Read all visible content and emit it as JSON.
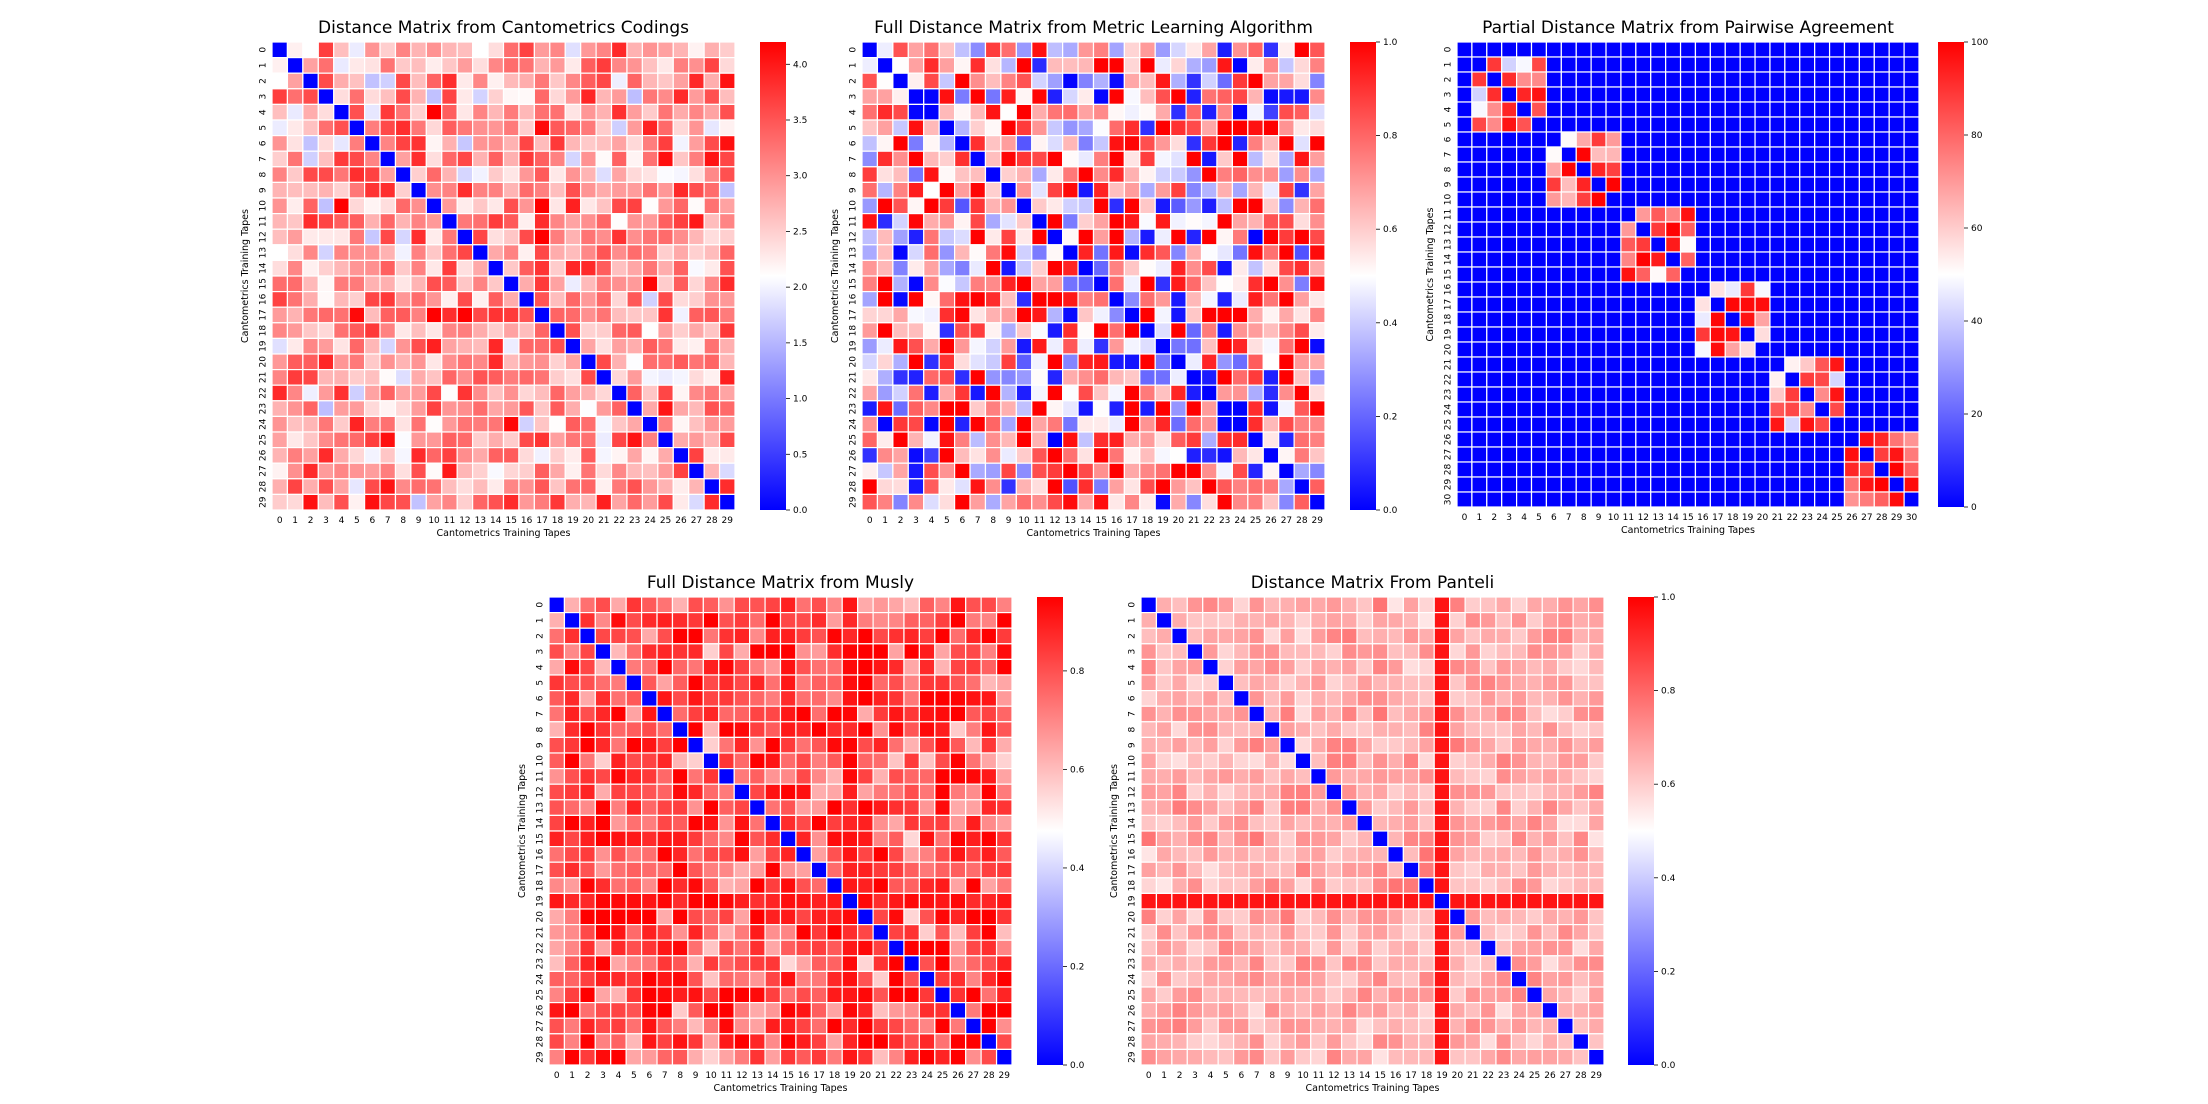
{
  "chart_data": [
    {
      "type": "heatmap",
      "title": "Distance Matrix from Cantometrics Codings",
      "xlabel": "Cantometrics Training Tapes",
      "ylabel": "Cantometrics Training Tapes",
      "size": 30,
      "x_ticks": [
        "0",
        "1",
        "2",
        "3",
        "4",
        "5",
        "6",
        "7",
        "8",
        "9",
        "10",
        "11",
        "12",
        "13",
        "14",
        "15",
        "16",
        "17",
        "18",
        "19",
        "20",
        "21",
        "22",
        "23",
        "24",
        "25",
        "26",
        "27",
        "28",
        "29"
      ],
      "y_ticks": [
        "0",
        "1",
        "2",
        "3",
        "4",
        "5",
        "6",
        "7",
        "8",
        "9",
        "10",
        "11",
        "12",
        "13",
        "14",
        "15",
        "16",
        "17",
        "18",
        "19",
        "20",
        "21",
        "22",
        "23",
        "24",
        "25",
        "26",
        "27",
        "28",
        "29"
      ],
      "colorbar": {
        "min": 0.0,
        "max": 4.2,
        "ticks": [
          "0.0",
          "0.5",
          "1.0",
          "1.5",
          "2.0",
          "2.5",
          "3.0",
          "3.5",
          "4.0"
        ],
        "tick_values": [
          0,
          0.5,
          1.0,
          1.5,
          2.0,
          2.5,
          3.0,
          3.5,
          4.0
        ]
      },
      "pattern": {
        "kind": "random",
        "diagonal": 0.0,
        "center": 2.9,
        "spread": 1.4,
        "seed": 11
      },
      "colormap": [
        "#0000ff",
        "#ffffff",
        "#ff0000"
      ]
    },
    {
      "type": "heatmap",
      "title": "Full Distance Matrix from Metric Learning Algorithm",
      "xlabel": "Cantometrics Training Tapes",
      "ylabel": "Cantometrics Training Tapes",
      "size": 30,
      "x_ticks": [
        "0",
        "1",
        "2",
        "3",
        "4",
        "5",
        "6",
        "7",
        "8",
        "9",
        "10",
        "11",
        "12",
        "13",
        "14",
        "15",
        "16",
        "17",
        "18",
        "19",
        "20",
        "21",
        "22",
        "23",
        "24",
        "25",
        "26",
        "27",
        "28",
        "29"
      ],
      "y_ticks": [
        "0",
        "1",
        "2",
        "3",
        "4",
        "5",
        "6",
        "7",
        "8",
        "9",
        "10",
        "11",
        "12",
        "13",
        "14",
        "15",
        "16",
        "17",
        "18",
        "19",
        "20",
        "21",
        "22",
        "23",
        "24",
        "25",
        "26",
        "27",
        "28",
        "29"
      ],
      "colorbar": {
        "min": 0.0,
        "max": 1.0,
        "ticks": [
          "0.0",
          "0.2",
          "0.4",
          "0.6",
          "0.8",
          "1.0"
        ],
        "tick_values": [
          0,
          0.2,
          0.4,
          0.6,
          0.8,
          1.0
        ]
      },
      "pattern": {
        "kind": "random",
        "diagonal": 0.0,
        "center": 0.7,
        "spread": 0.6,
        "seed": 23,
        "blue_prob": 0.1
      },
      "colormap": [
        "#0000ff",
        "#ffffff",
        "#ff0000"
      ]
    },
    {
      "type": "heatmap",
      "title": "Partial Distance Matrix from Pairwise Agreement",
      "xlabel": "Cantometrics Training Tapes",
      "ylabel": "Cantometrics Training Tapes",
      "size": 31,
      "x_ticks": [
        "0",
        "1",
        "2",
        "3",
        "4",
        "5",
        "6",
        "7",
        "8",
        "9",
        "10",
        "11",
        "12",
        "13",
        "14",
        "15",
        "16",
        "17",
        "18",
        "19",
        "20",
        "21",
        "22",
        "23",
        "24",
        "25",
        "26",
        "27",
        "28",
        "29",
        "30"
      ],
      "y_ticks": [
        "0",
        "1",
        "2",
        "3",
        "4",
        "5",
        "6",
        "7",
        "8",
        "9",
        "10",
        "11",
        "12",
        "13",
        "14",
        "15",
        "16",
        "17",
        "18",
        "19",
        "20",
        "21",
        "22",
        "23",
        "24",
        "25",
        "26",
        "27",
        "28",
        "29",
        "30"
      ],
      "colorbar": {
        "min": 0,
        "max": 100,
        "ticks": [
          "0",
          "20",
          "40",
          "60",
          "80",
          "100"
        ],
        "tick_values": [
          0,
          20,
          40,
          60,
          80,
          100
        ]
      },
      "pattern": {
        "kind": "blocks",
        "blocks": [
          [
            1,
            5
          ],
          [
            6,
            10
          ],
          [
            11,
            15
          ],
          [
            16,
            20
          ],
          [
            21,
            25
          ],
          [
            26,
            30
          ]
        ],
        "background": 0,
        "diagonal": 0,
        "seed": 37
      },
      "colormap": [
        "#0000ff",
        "#ffffff",
        "#ff0000"
      ]
    },
    {
      "type": "heatmap",
      "title": "Full Distance Matrix from Musly",
      "xlabel": "Cantometrics Training Tapes",
      "ylabel": "Cantometrics Training Tapes",
      "size": 30,
      "x_ticks": [
        "0",
        "1",
        "2",
        "3",
        "4",
        "5",
        "6",
        "7",
        "8",
        "9",
        "10",
        "11",
        "12",
        "13",
        "14",
        "15",
        "16",
        "17",
        "18",
        "19",
        "20",
        "21",
        "22",
        "23",
        "24",
        "25",
        "26",
        "27",
        "28",
        "29"
      ],
      "y_ticks": [
        "0",
        "1",
        "2",
        "3",
        "4",
        "5",
        "6",
        "7",
        "8",
        "9",
        "10",
        "11",
        "12",
        "13",
        "14",
        "15",
        "16",
        "17",
        "18",
        "19",
        "20",
        "21",
        "22",
        "23",
        "24",
        "25",
        "26",
        "27",
        "28",
        "29"
      ],
      "colorbar": {
        "min": 0.0,
        "max": 0.95,
        "ticks": [
          "0.0",
          "0.2",
          "0.4",
          "0.6",
          "0.8"
        ],
        "tick_values": [
          0,
          0.2,
          0.4,
          0.6,
          0.8
        ]
      },
      "pattern": {
        "kind": "random",
        "diagonal": 0.0,
        "center": 0.82,
        "spread": 0.3,
        "seed": 53,
        "hot_row": 19
      },
      "colormap": [
        "#0000ff",
        "#ffffff",
        "#ff0000"
      ]
    },
    {
      "type": "heatmap",
      "title": "Distance Matrix From Panteli",
      "xlabel": "Cantometrics Training Tapes",
      "ylabel": "Cantometrics Training Tapes",
      "size": 30,
      "x_ticks": [
        "0",
        "1",
        "2",
        "3",
        "4",
        "5",
        "6",
        "7",
        "8",
        "9",
        "10",
        "11",
        "12",
        "13",
        "14",
        "15",
        "16",
        "17",
        "18",
        "19",
        "20",
        "21",
        "22",
        "23",
        "24",
        "25",
        "26",
        "27",
        "28",
        "29"
      ],
      "y_ticks": [
        "0",
        "1",
        "2",
        "3",
        "4",
        "5",
        "6",
        "7",
        "8",
        "9",
        "10",
        "11",
        "12",
        "13",
        "14",
        "15",
        "16",
        "17",
        "18",
        "19",
        "20",
        "21",
        "22",
        "23",
        "24",
        "25",
        "26",
        "27",
        "28",
        "29"
      ],
      "colorbar": {
        "min": 0.0,
        "max": 1.0,
        "ticks": [
          "0.0",
          "0.2",
          "0.4",
          "0.6",
          "0.8",
          "1.0"
        ],
        "tick_values": [
          0,
          0.2,
          0.4,
          0.6,
          0.8,
          1.0
        ]
      },
      "pattern": {
        "kind": "random",
        "diagonal": 0.0,
        "center": 0.66,
        "spread": 0.12,
        "seed": 71,
        "hot_row": 19,
        "hot_value": 0.96
      },
      "colormap": [
        "#0000ff",
        "#ffffff",
        "#ff0000"
      ]
    }
  ]
}
